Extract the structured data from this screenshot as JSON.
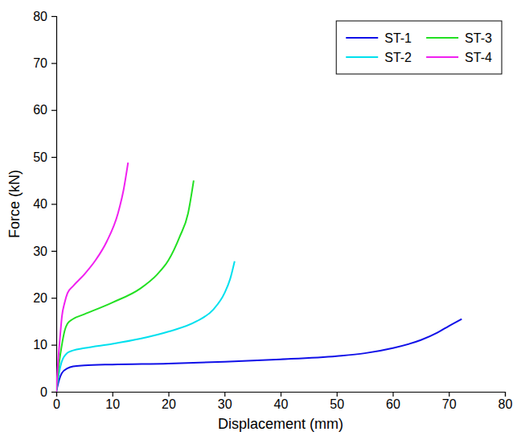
{
  "chart_data": {
    "type": "line",
    "x_label": "Displacement (mm)",
    "y_label": "Force (kN)",
    "xlim": [
      0,
      80
    ],
    "xticks": [
      0,
      10,
      20,
      30,
      40,
      50,
      60,
      70,
      80
    ],
    "ylim": [
      0,
      80
    ],
    "yticks": [
      0,
      10,
      20,
      30,
      40,
      50,
      60,
      70,
      80
    ],
    "grid": false,
    "legend": "top-right",
    "series": [
      {
        "name": "ST-1",
        "color": "#1010e8",
        "x": [
          0,
          0.5,
          1,
          2,
          3,
          5,
          10,
          20,
          30,
          40,
          50,
          55,
          60,
          65,
          68,
          70,
          72.3
        ],
        "values": [
          0,
          2.5,
          4,
          5,
          5.4,
          5.6,
          5.8,
          6,
          6.4,
          6.9,
          7.6,
          8.2,
          9.3,
          11,
          12.6,
          14,
          15.5
        ]
      },
      {
        "name": "ST-2",
        "color": "#00e0ee",
        "x": [
          0,
          0.5,
          1,
          2,
          3,
          5,
          10,
          15,
          20,
          25,
          28,
          30,
          31,
          31.8
        ],
        "values": [
          0,
          4,
          6.5,
          8.3,
          8.8,
          9.3,
          10.2,
          11.3,
          12.8,
          15,
          17.5,
          21,
          24,
          27.8
        ]
      },
      {
        "name": "ST-3",
        "color": "#22e022",
        "x": [
          0,
          0.5,
          1,
          1.5,
          2,
          3,
          5,
          10,
          15,
          18,
          20,
          22,
          23.5,
          24.5
        ],
        "values": [
          0,
          6,
          10,
          13,
          14.5,
          15.5,
          16.5,
          19,
          22,
          25,
          28,
          33,
          38,
          45
        ]
      },
      {
        "name": "ST-4",
        "color": "#f020f0",
        "x": [
          0,
          0.3,
          0.7,
          1,
          1.5,
          2,
          3,
          5,
          7,
          9,
          11,
          12,
          12.8
        ],
        "values": [
          0,
          6,
          12,
          16,
          19,
          21,
          22.5,
          25,
          28,
          32,
          38,
          43,
          48.8
        ]
      }
    ]
  }
}
